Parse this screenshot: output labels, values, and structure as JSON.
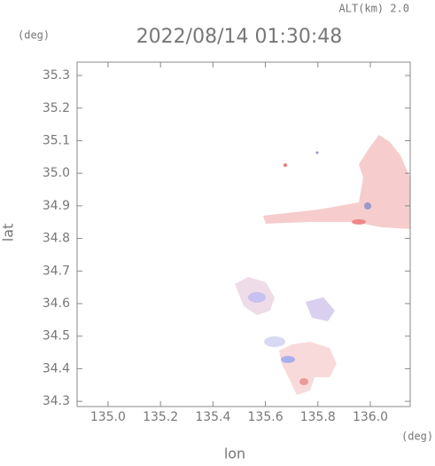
{
  "chart_data": {
    "type": "map",
    "title": "2022/08/14 01:30:48",
    "subtitle": "ALT(km) 2.0",
    "y_unit": "(deg)",
    "x_unit": "(deg)",
    "xlabel": "lon",
    "ylabel": "lat",
    "xlim": [
      134.882,
      136.152
    ],
    "ylim": [
      34.284,
      35.341
    ],
    "xticks": [
      {
        "value": 135.0,
        "label": "135.0"
      },
      135.2,
      135.4,
      135.6,
      135.8,
      {
        "value": 136.0,
        "label": "136.0"
      }
    ],
    "yticks": [
      34.3,
      34.4,
      34.5,
      34.6,
      34.7,
      34.8,
      34.9,
      {
        "value": 35.0,
        "label": "35.0"
      },
      35.1,
      35.2,
      35.3
    ]
  }
}
